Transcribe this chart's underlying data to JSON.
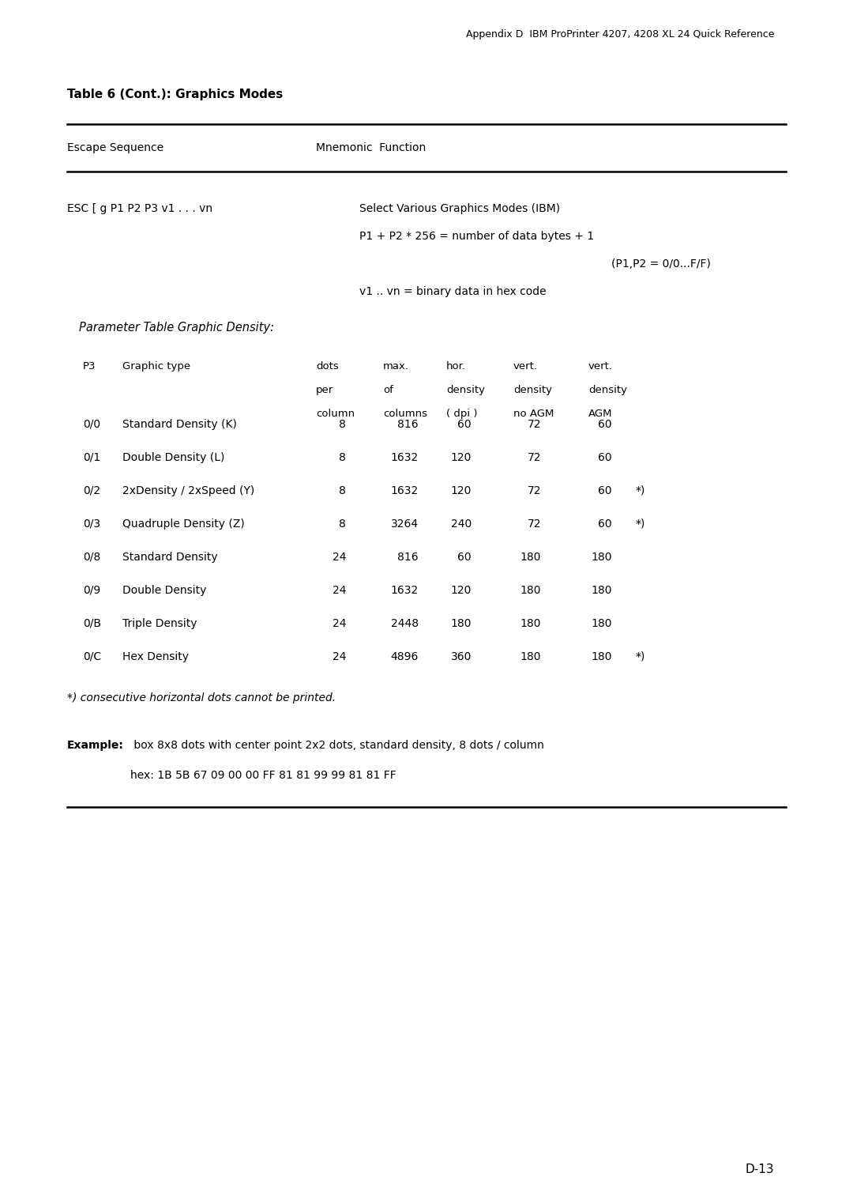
{
  "header_text": "Appendix D  IBM ProPrinter 4207, 4208 XL 24 Quick Reference",
  "table_title": "Table 6 (Cont.): Graphics Modes",
  "esc_sequence": "ESC [ g P1 P2 P3 v1 . . . vn",
  "func_line1": "Select Various Graphics Modes (IBM)",
  "func_line2": "P1 + P2 * 256 = number of data bytes + 1",
  "func_line3": "(P1,P2 = 0/0...F/F)",
  "func_line4": "v1 .. vn = binary data in hex code",
  "param_table_label": "Parameter Table Graphic Density:",
  "rows": [
    [
      "0/0",
      "Standard Density (K)",
      "8",
      "816",
      "60",
      "72",
      "60",
      ""
    ],
    [
      "0/1",
      "Double Density (L)",
      "8",
      "1632",
      "120",
      "72",
      "60",
      ""
    ],
    [
      "0/2",
      "2xDensity / 2xSpeed (Y)",
      "8",
      "1632",
      "120",
      "72",
      "60",
      "*)"
    ],
    [
      "0/3",
      "Quadruple Density (Z)",
      "8",
      "3264",
      "240",
      "72",
      "60",
      "*)"
    ],
    [
      "0/8",
      "Standard Density",
      "24",
      "816",
      "60",
      "180",
      "180",
      ""
    ],
    [
      "0/9",
      "Double Density",
      "24",
      "1632",
      "120",
      "180",
      "180",
      ""
    ],
    [
      "0/B",
      "Triple Density",
      "24",
      "2448",
      "180",
      "180",
      "180",
      ""
    ],
    [
      "0/C",
      "Hex Density",
      "24",
      "4896",
      "360",
      "180",
      "180",
      "*)"
    ]
  ],
  "footnote": "*) consecutive horizontal dots cannot be printed.",
  "example_label": "Example:",
  "example_line1": " box 8x8 dots with center point 2x2 dots, standard density, 8 dots / column",
  "example_line2": "hex: 1B 5B 67 09 00 00 FF 81 81 99 99 81 81 FF",
  "page_num": "D-13",
  "bg_color": "#ffffff",
  "text_color": "#000000"
}
